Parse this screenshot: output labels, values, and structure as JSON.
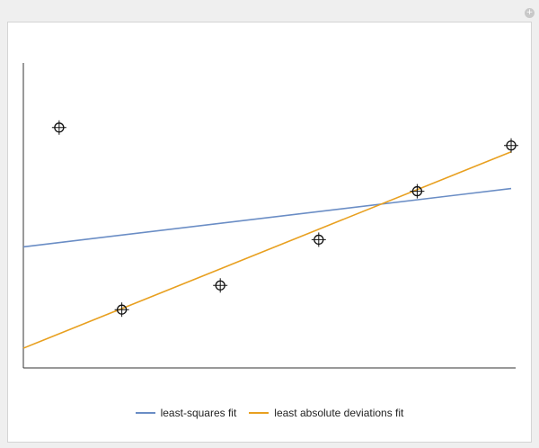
{
  "window": {
    "corner_button_icon": "plus-circle-icon"
  },
  "colors": {
    "least_squares": "#6a8dc5",
    "least_absolute": "#e8a020",
    "points": "#111111",
    "axes": "#333333"
  },
  "chart_data": {
    "type": "scatter",
    "title": "",
    "xlabel": "",
    "ylabel": "",
    "xlim": [
      0,
      5.5
    ],
    "ylim": [
      0,
      3.4
    ],
    "grid": false,
    "legend_position": "bottom",
    "points": [
      {
        "x": 0.4,
        "y": 2.68
      },
      {
        "x": 1.1,
        "y": 0.65
      },
      {
        "x": 2.2,
        "y": 0.92
      },
      {
        "x": 3.3,
        "y": 1.43
      },
      {
        "x": 4.4,
        "y": 1.97
      },
      {
        "x": 5.45,
        "y": 2.48
      }
    ],
    "series": [
      {
        "name": "least-squares fit",
        "x": [
          0,
          5.45
        ],
        "y": [
          1.35,
          2.0
        ]
      },
      {
        "name": "least absolute deviations fit",
        "x": [
          0,
          5.45
        ],
        "y": [
          0.22,
          2.41
        ]
      }
    ]
  }
}
